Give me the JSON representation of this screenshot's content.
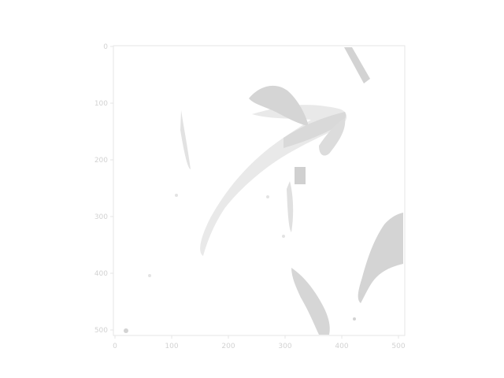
{
  "figure": {
    "kind": "grayscale image displayed on axes",
    "x_ticks": [
      "0",
      "100",
      "200",
      "300",
      "400",
      "500"
    ],
    "y_ticks": [
      "0",
      "100",
      "200",
      "300",
      "400",
      "500"
    ],
    "xlim": [
      0,
      511
    ],
    "ylim": [
      511,
      0
    ],
    "image_colors": {
      "background": "#ffffff",
      "paper": "#ffffff",
      "light_gray": "#d9d9d9",
      "mid_gray": "#cfcfcf",
      "axis": "#e6e6e6",
      "tick_text": "#d2d2d2"
    }
  }
}
